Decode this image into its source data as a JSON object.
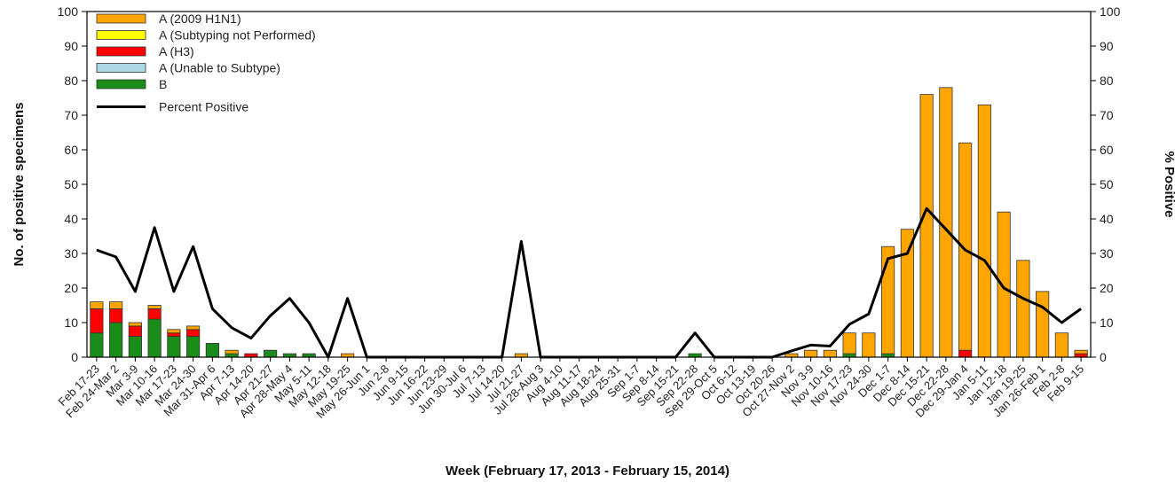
{
  "chart_data": {
    "type": "bar",
    "xlabel": "Week (February 17, 2013 - February 15, 2014)",
    "ylabel": "No. of positive specimens",
    "y2label": "% Positive",
    "ylim": [
      0,
      100
    ],
    "y2lim": [
      0,
      100
    ],
    "yticks": [
      0,
      10,
      20,
      30,
      40,
      50,
      60,
      70,
      80,
      90,
      100
    ],
    "y2ticks": [
      0,
      10,
      20,
      30,
      40,
      50,
      60,
      70,
      80,
      90,
      100
    ],
    "stacked": true,
    "grid": false,
    "legend_position": "top-left",
    "categories": [
      "Feb 17-23",
      "Feb 24-Mar 2",
      "Mar 3-9",
      "Mar 10-16",
      "Mar 17-23",
      "Mar 24-30",
      "Mar 31-Apr 6",
      "Apr 7-13",
      "Apr 14-20",
      "Apr 21-27",
      "Apr 28-May 4",
      "May 5-11",
      "May 12-18",
      "May 19-25",
      "May 26-Jun 1",
      "Jun 2-8",
      "Jun 9-15",
      "Jun 16-22",
      "Jun 23-29",
      "Jun 30-Jul 6",
      "Jul 7-13",
      "Jul 14-20",
      "Jul 21-27",
      "Jul 28-Aug 3",
      "Aug 4-10",
      "Aug 11-17",
      "Aug 18-24",
      "Aug 25-31",
      "Sep 1-7",
      "Sep 8-14",
      "Sep 15-21",
      "Sep 22-28",
      "Sep 29-Oct 5",
      "Oct 6-12",
      "Oct 13-19",
      "Oct 20-26",
      "Oct 27-Nov 2",
      "Nov 3-9",
      "Nov 10-16",
      "Nov 17-23",
      "Nov 24-30",
      "Dec 1-7",
      "Dec 8-14",
      "Dec 15-21",
      "Dec 22-28",
      "Dec 29-Jan 4",
      "Jan 5-11",
      "Jan 12-18",
      "Jan 19-25",
      "Jan 26-Feb 1",
      "Feb 2-8",
      "Feb 9-15"
    ],
    "series": [
      {
        "name": "B",
        "color": "#1a8c1a",
        "values": [
          7,
          10,
          6,
          11,
          6,
          6,
          4,
          1,
          0,
          2,
          1,
          1,
          0,
          0,
          0,
          0,
          0,
          0,
          0,
          0,
          0,
          0,
          0,
          0,
          0,
          0,
          0,
          0,
          0,
          0,
          0,
          1,
          0,
          0,
          0,
          0,
          0,
          0,
          0,
          1,
          0,
          1,
          0,
          0,
          0,
          0,
          0,
          0,
          0,
          0,
          0,
          0
        ]
      },
      {
        "name": "A (Unable to Subtype)",
        "color": "#add8e6",
        "values": [
          0,
          0,
          0,
          0,
          0,
          0,
          0,
          0,
          0,
          0,
          0,
          0,
          0,
          0,
          0,
          0,
          0,
          0,
          0,
          0,
          0,
          0,
          0,
          0,
          0,
          0,
          0,
          0,
          0,
          0,
          0,
          0,
          0,
          0,
          0,
          0,
          0,
          0,
          0,
          0,
          0,
          0,
          0,
          0,
          0,
          0,
          0,
          0,
          0,
          0,
          0,
          0
        ]
      },
      {
        "name": "A (H3)",
        "color": "#ff0000",
        "values": [
          7,
          4,
          3,
          3,
          1,
          2,
          0,
          0,
          1,
          0,
          0,
          0,
          0,
          0,
          0,
          0,
          0,
          0,
          0,
          0,
          0,
          0,
          0,
          0,
          0,
          0,
          0,
          0,
          0,
          0,
          0,
          0,
          0,
          0,
          0,
          0,
          0,
          0,
          0,
          0,
          0,
          0,
          0,
          0,
          0,
          2,
          0,
          0,
          0,
          0,
          0,
          1
        ]
      },
      {
        "name": "A (Subtyping not Performed)",
        "color": "#ffff00",
        "values": [
          0,
          0,
          0,
          0,
          0,
          0,
          0,
          0,
          0,
          0,
          0,
          0,
          0,
          0,
          0,
          0,
          0,
          0,
          0,
          0,
          0,
          0,
          0,
          0,
          0,
          0,
          0,
          0,
          0,
          0,
          0,
          0,
          0,
          0,
          0,
          0,
          0,
          0,
          0,
          0,
          0,
          0,
          0,
          0,
          0,
          0,
          0,
          0,
          0,
          0,
          0,
          0
        ]
      },
      {
        "name": "A (2009 H1N1)",
        "color": "#ffa500",
        "values": [
          2,
          2,
          1,
          1,
          1,
          1,
          0,
          1,
          0,
          0,
          0,
          0,
          0,
          1,
          0,
          0,
          0,
          0,
          0,
          0,
          0,
          0,
          1,
          0,
          0,
          0,
          0,
          0,
          0,
          0,
          0,
          0,
          0,
          0,
          0,
          0,
          1,
          2,
          2,
          6,
          7,
          31,
          37,
          76,
          78,
          60,
          73,
          42,
          28,
          19,
          7,
          1
        ]
      }
    ],
    "line_series": {
      "name": "Percent Positive",
      "color": "#000000",
      "axis": "y2",
      "values": [
        31,
        29,
        19,
        37.5,
        19,
        32,
        14,
        8.5,
        5.5,
        12,
        17,
        10,
        0,
        17,
        0,
        0,
        0,
        0,
        0,
        0,
        0,
        0,
        33.5,
        0,
        0,
        0,
        0,
        0,
        0,
        0,
        0,
        7,
        0,
        0,
        0,
        0,
        1.8,
        3.5,
        3.2,
        9.5,
        12.5,
        28.5,
        30,
        43,
        37,
        31,
        28,
        20,
        17,
        14.5,
        10,
        14
      ]
    },
    "legend": [
      "A (2009 H1N1)",
      "A (Subtyping not Performed)",
      "A (H3)",
      "A (Unable to Subtype)",
      "B",
      "Percent Positive"
    ]
  }
}
